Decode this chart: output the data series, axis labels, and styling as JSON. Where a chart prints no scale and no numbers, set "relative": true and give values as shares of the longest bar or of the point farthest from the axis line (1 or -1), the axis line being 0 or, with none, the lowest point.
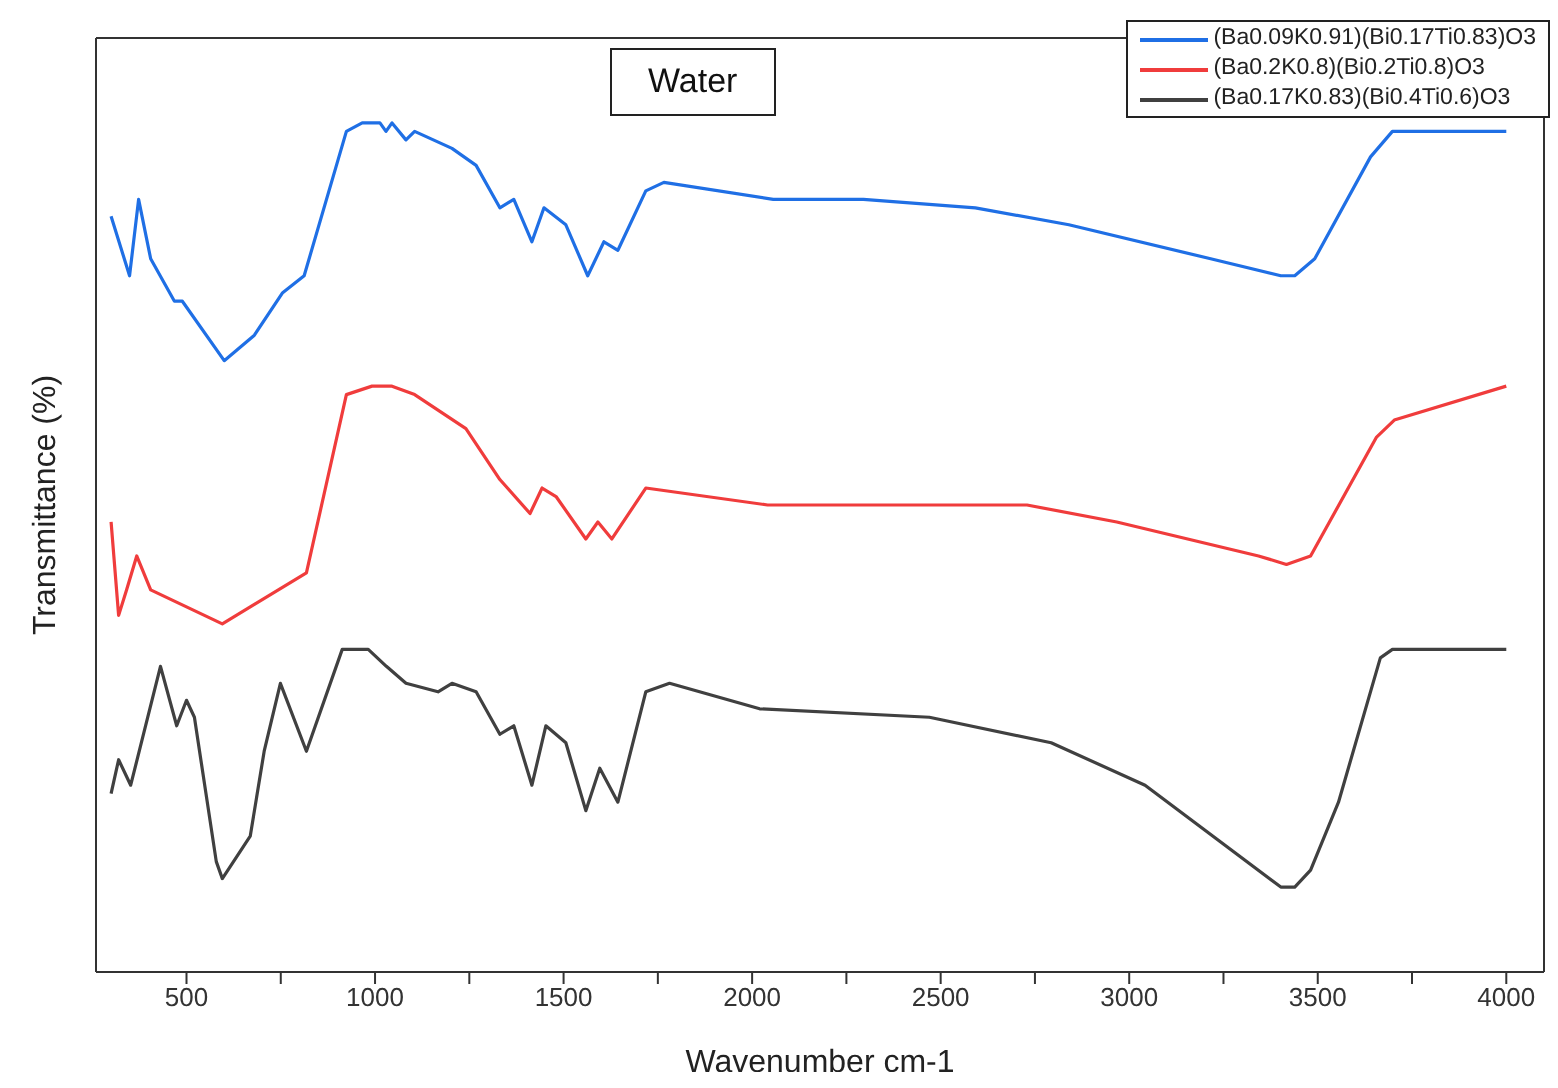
{
  "chart_data": {
    "type": "line",
    "relative": true,
    "xlabel": "Wavenumber cm-1",
    "ylabel": "Transmittance (%)",
    "annotations": [
      "Water"
    ],
    "legend": "top right",
    "xlim": [
      260,
      4100
    ],
    "xticks": [
      500,
      {
        "value": 750,
        "label": null
      },
      1000,
      {
        "value": 1250,
        "label": null
      },
      1500,
      {
        "value": 1750,
        "label": null
      },
      2000,
      {
        "value": 2250,
        "label": null
      },
      2500,
      {
        "value": 2750,
        "label": null
      },
      3000,
      {
        "value": 3250,
        "label": null
      },
      3500,
      {
        "value": 3750,
        "label": null
      },
      4000
    ],
    "series": [
      {
        "name": "(Ba0.09K0.91)(Bi0.17Ti0.83)O3",
        "color": "#1f6fe5",
        "x": [
          300,
          349,
          373,
          405,
          468,
          489,
          600,
          680,
          755,
          812,
          924,
          966,
          1013,
          1029,
          1045,
          1082,
          1105,
          1204,
          1268,
          1331,
          1368,
          1416,
          1448,
          1506,
          1564,
          1607,
          1644,
          1718,
          1766,
          2056,
          2295,
          2592,
          2840,
          3216,
          3402,
          3439,
          3492,
          3640,
          3698,
          4000
        ],
        "values": [
          0.89,
          0.82,
          0.91,
          0.84,
          0.79,
          0.79,
          0.72,
          0.75,
          0.8,
          0.82,
          0.99,
          1.0,
          1.0,
          0.99,
          1.0,
          0.98,
          0.99,
          0.97,
          0.95,
          0.9,
          0.91,
          0.86,
          0.9,
          0.88,
          0.82,
          0.86,
          0.85,
          0.92,
          0.93,
          0.91,
          0.91,
          0.9,
          0.88,
          0.84,
          0.82,
          0.82,
          0.84,
          0.96,
          0.99,
          0.99
        ]
      },
      {
        "name": "(Ba0.2K0.8)(Bi0.2Ti0.8)O3",
        "color": "#f03c3c",
        "x": [
          300,
          320,
          341,
          368,
          405,
          595,
          818,
          924,
          992,
          1045,
          1105,
          1241,
          1331,
          1411,
          1443,
          1480,
          1559,
          1591,
          1628,
          1718,
          2041,
          2729,
          2967,
          3343,
          3417,
          3481,
          3656,
          3703,
          4000
        ],
        "values": [
          0.53,
          0.42,
          0.45,
          0.49,
          0.45,
          0.41,
          0.47,
          0.68,
          0.69,
          0.69,
          0.68,
          0.64,
          0.58,
          0.54,
          0.57,
          0.56,
          0.51,
          0.53,
          0.51,
          0.57,
          0.55,
          0.55,
          0.53,
          0.49,
          0.48,
          0.49,
          0.63,
          0.65,
          0.69
        ]
      },
      {
        "name": "(Ba0.17K0.83)(Bi0.4Ti0.6)O3",
        "color": "#404040",
        "x": [
          300,
          320,
          352,
          431,
          474,
          500,
          521,
          579,
          595,
          669,
          706,
          749,
          818,
          913,
          982,
          1030,
          1082,
          1167,
          1204,
          1268,
          1331,
          1368,
          1416,
          1453,
          1506,
          1559,
          1596,
          1644,
          1718,
          1781,
          2020,
          2470,
          2793,
          3042,
          3402,
          3439,
          3481,
          3555,
          3666,
          3698,
          4000
        ],
        "values": [
          0.21,
          0.25,
          0.22,
          0.36,
          0.29,
          0.32,
          0.3,
          0.13,
          0.11,
          0.16,
          0.26,
          0.34,
          0.26,
          0.38,
          0.38,
          0.36,
          0.34,
          0.33,
          0.34,
          0.33,
          0.28,
          0.29,
          0.22,
          0.29,
          0.27,
          0.19,
          0.24,
          0.2,
          0.33,
          0.34,
          0.31,
          0.3,
          0.27,
          0.22,
          0.1,
          0.1,
          0.12,
          0.2,
          0.37,
          0.38,
          0.38
        ]
      }
    ]
  }
}
